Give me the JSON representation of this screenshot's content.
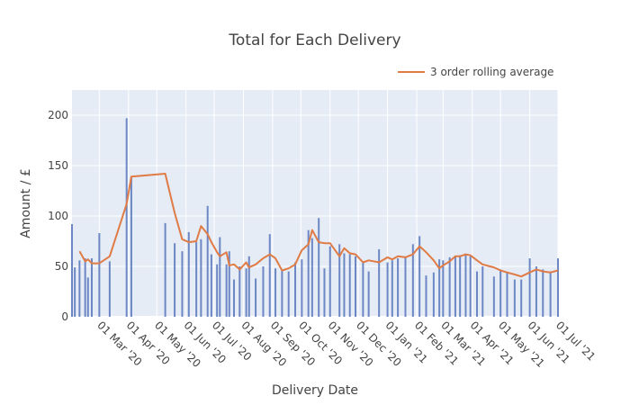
{
  "chart_data": {
    "type": "bar",
    "title": "Total for Each Delivery",
    "xlabel": "Delivery Date",
    "ylabel": "Amount / £",
    "ylim": [
      0,
      225
    ],
    "yticks": [
      0,
      50,
      100,
      150,
      200
    ],
    "xlim": [
      "2020-02-01",
      "2021-07-01"
    ],
    "xtick_values": [
      "2020-03-01",
      "2020-04-01",
      "2020-05-01",
      "2020-06-01",
      "2020-07-01",
      "2020-08-01",
      "2020-09-01",
      "2020-10-01",
      "2020-11-01",
      "2020-12-01",
      "2021-01-01",
      "2021-02-01",
      "2021-03-01",
      "2021-04-01",
      "2021-05-01",
      "2021-06-01",
      "2021-07-01"
    ],
    "xtick_labels": [
      "01 Mar '20",
      "01 Apr '20",
      "01 May '20",
      "01 Jun '20",
      "01 Jul '20",
      "01 Aug '20",
      "01 Sep '20",
      "01 Oct '20",
      "01 Nov '20",
      "01 Dec '20",
      "01 Jan '21",
      "01 Feb '21",
      "01 Mar '21",
      "01 Apr '21",
      "01 May '21",
      "01 Jun '21",
      "01 Jul '21"
    ],
    "grid": true,
    "legend_position": "top-right",
    "colors": {
      "bars": "#6c87c4",
      "line": "#e07b45",
      "plot_bg": "#e5ecf6",
      "grid": "#ffffff"
    },
    "series": [
      {
        "type": "bar",
        "dates": [
          "2020-02-01",
          "2020-02-04",
          "2020-02-09",
          "2020-02-15",
          "2020-02-18",
          "2020-02-22",
          "2020-03-01",
          "2020-03-12",
          "2020-03-30",
          "2020-04-04",
          "2020-05-10",
          "2020-05-20",
          "2020-05-28",
          "2020-06-04",
          "2020-06-12",
          "2020-06-17",
          "2020-06-24",
          "2020-06-28",
          "2020-07-04",
          "2020-07-07",
          "2020-07-14",
          "2020-07-17",
          "2020-07-22",
          "2020-07-28",
          "2020-08-04",
          "2020-08-07",
          "2020-08-14",
          "2020-08-22",
          "2020-08-29",
          "2020-09-04",
          "2020-09-11",
          "2020-09-18",
          "2020-09-25",
          "2020-10-02",
          "2020-10-09",
          "2020-10-13",
          "2020-10-20",
          "2020-10-26",
          "2020-11-01",
          "2020-11-11",
          "2020-11-16",
          "2020-11-22",
          "2020-11-28",
          "2020-12-06",
          "2020-12-12",
          "2020-12-23",
          "2021-01-01",
          "2021-01-06",
          "2021-01-12",
          "2021-01-20",
          "2021-01-28",
          "2021-02-04",
          "2021-02-11",
          "2021-02-19",
          "2021-02-25",
          "2021-03-01",
          "2021-03-08",
          "2021-03-14",
          "2021-03-19",
          "2021-03-25",
          "2021-03-30",
          "2021-04-06",
          "2021-04-12",
          "2021-04-24",
          "2021-05-01",
          "2021-05-08",
          "2021-05-16",
          "2021-05-23",
          "2021-06-01",
          "2021-06-08",
          "2021-06-15",
          "2021-06-23",
          "2021-07-01"
        ],
        "values": [
          92,
          49,
          56,
          58,
          39,
          58,
          83,
          55,
          197,
          138,
          93,
          73,
          65,
          84,
          74,
          77,
          110,
          62,
          52,
          79,
          52,
          65,
          37,
          50,
          48,
          60,
          38,
          50,
          82,
          48,
          46,
          45,
          54,
          57,
          86,
          78,
          98,
          48,
          70,
          72,
          63,
          62,
          60,
          55,
          45,
          67,
          54,
          56,
          58,
          60,
          72,
          80,
          41,
          44,
          57,
          56,
          59,
          60,
          61,
          62,
          60,
          45,
          50,
          40,
          47,
          44,
          37,
          37,
          58,
          50,
          47,
          45,
          58
        ]
      },
      {
        "type": "line",
        "name": "3 order rolling average",
        "dates": [
          "2020-02-09",
          "2020-02-15",
          "2020-02-18",
          "2020-02-22",
          "2020-03-01",
          "2020-03-12",
          "2020-03-30",
          "2020-04-04",
          "2020-05-10",
          "2020-05-20",
          "2020-05-28",
          "2020-06-04",
          "2020-06-12",
          "2020-06-17",
          "2020-06-24",
          "2020-06-28",
          "2020-07-04",
          "2020-07-07",
          "2020-07-14",
          "2020-07-17",
          "2020-07-22",
          "2020-07-28",
          "2020-08-04",
          "2020-08-07",
          "2020-08-14",
          "2020-08-22",
          "2020-08-29",
          "2020-09-04",
          "2020-09-11",
          "2020-09-18",
          "2020-09-25",
          "2020-10-02",
          "2020-10-09",
          "2020-10-13",
          "2020-10-20",
          "2020-10-26",
          "2020-11-01",
          "2020-11-11",
          "2020-11-16",
          "2020-11-22",
          "2020-11-28",
          "2020-12-06",
          "2020-12-12",
          "2020-12-23",
          "2021-01-01",
          "2021-01-06",
          "2021-01-12",
          "2021-01-20",
          "2021-01-28",
          "2021-02-04",
          "2021-02-11",
          "2021-02-19",
          "2021-02-25",
          "2021-03-01",
          "2021-03-08",
          "2021-03-14",
          "2021-03-19",
          "2021-03-25",
          "2021-03-30",
          "2021-04-06",
          "2021-04-12",
          "2021-04-24",
          "2021-05-01",
          "2021-05-08",
          "2021-05-16",
          "2021-05-23",
          "2021-06-01",
          "2021-06-08",
          "2021-06-15",
          "2021-06-23",
          "2021-07-01"
        ],
        "values": [
          65,
          55,
          57,
          53,
          53,
          60,
          112,
          139,
          142,
          103,
          77,
          74,
          75,
          90,
          82,
          74,
          64,
          60,
          64,
          51,
          52,
          47,
          54,
          49,
          52,
          58,
          62,
          58,
          46,
          48,
          52,
          66,
          72,
          86,
          74,
          73,
          73,
          60,
          68,
          63,
          62,
          54,
          56,
          54,
          59,
          57,
          60,
          59,
          62,
          70,
          64,
          56,
          48,
          51,
          55,
          60,
          60,
          62,
          61,
          56,
          52,
          49,
          46,
          44,
          42,
          40,
          44,
          47,
          45,
          44,
          46
        ]
      }
    ]
  }
}
